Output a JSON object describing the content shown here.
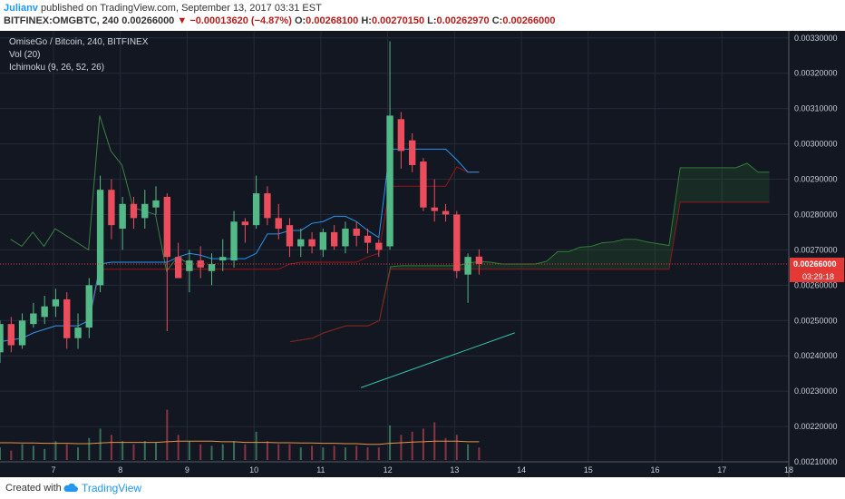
{
  "header": {
    "user": "Julianv",
    "published": " published on TradingView.com, September 13, 2017 03:31 EST",
    "symbol": "BITFINEX:OMGBTC, 240",
    "last": "0.00266000",
    "change": "−0.00013620 (−4.87%)",
    "ohlc_o_label": "O:",
    "ohlc_o": "0.00268100",
    "ohlc_h_label": "H:",
    "ohlc_h": "0.00270150",
    "ohlc_l_label": "L:",
    "ohlc_l": "0.00262970",
    "ohlc_c_label": "C:",
    "ohlc_c": "0.00266000"
  },
  "legend": {
    "title": "OmiseGo / Bitcoin, 240, BITFINEX",
    "vol": "Vol (20)",
    "ichimoku": "Ichimoku (9, 26, 52, 26)"
  },
  "footer": {
    "created": "Created with",
    "brand": "TradingView"
  },
  "colors": {
    "background": "#131722",
    "bull": "#53b987",
    "bear": "#eb4d5c",
    "price_line": "#e53935",
    "volume_ma": "#e59545",
    "trendline": "#2fc0a8",
    "kijun": "#991515",
    "tenkan": "#2196f3"
  },
  "chart_data": {
    "type": "candlestick",
    "symbol": "OMGBTC",
    "interval": "240",
    "ylim": [
      0.0021,
      0.00332
    ],
    "xlim": [
      6.2,
      18.0
    ],
    "y_ticks": [
      "0.00210000",
      "0.00220000",
      "0.00230000",
      "0.00240000",
      "0.00250000",
      "0.00260000",
      "0.00270000",
      "0.00280000",
      "0.00290000",
      "0.00300000",
      "0.00310000",
      "0.00320000",
      "0.00330000"
    ],
    "x_ticks": [
      "7",
      "8",
      "9",
      "10",
      "11",
      "12",
      "13",
      "14",
      "15",
      "16",
      "17",
      "18"
    ],
    "current_price_label": "0.00266000",
    "countdown_label": "03:29:18",
    "candles": [
      {
        "t": 6.2,
        "o": 0.00241,
        "h": 0.0025,
        "l": 0.00238,
        "c": 0.00249
      },
      {
        "t": 6.367,
        "o": 0.00249,
        "h": 0.00251,
        "l": 0.00241,
        "c": 0.00243
      },
      {
        "t": 6.533,
        "o": 0.00243,
        "h": 0.00252,
        "l": 0.00242,
        "c": 0.0025
      },
      {
        "t": 6.7,
        "o": 0.00249,
        "h": 0.00255,
        "l": 0.00248,
        "c": 0.00252
      },
      {
        "t": 6.867,
        "o": 0.00251,
        "h": 0.00257,
        "l": 0.00249,
        "c": 0.00254
      },
      {
        "t": 7.033,
        "o": 0.00254,
        "h": 0.00259,
        "l": 0.00251,
        "c": 0.00256
      },
      {
        "t": 7.2,
        "o": 0.00256,
        "h": 0.00258,
        "l": 0.00242,
        "c": 0.00245
      },
      {
        "t": 7.367,
        "o": 0.00245,
        "h": 0.00252,
        "l": 0.00242,
        "c": 0.00248
      },
      {
        "t": 7.533,
        "o": 0.00248,
        "h": 0.00262,
        "l": 0.00245,
        "c": 0.0026
      },
      {
        "t": 7.7,
        "o": 0.0026,
        "h": 0.00291,
        "l": 0.00258,
        "c": 0.00287
      },
      {
        "t": 7.867,
        "o": 0.00287,
        "h": 0.0029,
        "l": 0.00273,
        "c": 0.00277
      },
      {
        "t": 8.033,
        "o": 0.00276,
        "h": 0.00285,
        "l": 0.0027,
        "c": 0.00283
      },
      {
        "t": 8.2,
        "o": 0.00283,
        "h": 0.00285,
        "l": 0.00276,
        "c": 0.00279
      },
      {
        "t": 8.367,
        "o": 0.00279,
        "h": 0.00287,
        "l": 0.00276,
        "c": 0.00283
      },
      {
        "t": 8.533,
        "o": 0.00282,
        "h": 0.00288,
        "l": 0.0028,
        "c": 0.00284
      },
      {
        "t": 8.7,
        "o": 0.00285,
        "h": 0.00286,
        "l": 0.00247,
        "c": 0.00268
      },
      {
        "t": 8.867,
        "o": 0.00268,
        "h": 0.00272,
        "l": 0.00262,
        "c": 0.00262
      },
      {
        "t": 9.033,
        "o": 0.00264,
        "h": 0.0027,
        "l": 0.00258,
        "c": 0.00267
      },
      {
        "t": 9.2,
        "o": 0.00267,
        "h": 0.00271,
        "l": 0.00262,
        "c": 0.00265
      },
      {
        "t": 9.367,
        "o": 0.00264,
        "h": 0.00269,
        "l": 0.0026,
        "c": 0.00266
      },
      {
        "t": 9.533,
        "o": 0.00267,
        "h": 0.00273,
        "l": 0.00264,
        "c": 0.00268
      },
      {
        "t": 9.7,
        "o": 0.00267,
        "h": 0.00281,
        "l": 0.00265,
        "c": 0.00278
      },
      {
        "t": 9.867,
        "o": 0.00278,
        "h": 0.00279,
        "l": 0.00272,
        "c": 0.00277
      },
      {
        "t": 10.033,
        "o": 0.00277,
        "h": 0.00291,
        "l": 0.00276,
        "c": 0.00286
      },
      {
        "t": 10.2,
        "o": 0.00286,
        "h": 0.00288,
        "l": 0.00277,
        "c": 0.00279
      },
      {
        "t": 10.367,
        "o": 0.00279,
        "h": 0.00283,
        "l": 0.00273,
        "c": 0.00276
      },
      {
        "t": 10.533,
        "o": 0.00277,
        "h": 0.00279,
        "l": 0.00268,
        "c": 0.00271
      },
      {
        "t": 10.7,
        "o": 0.00271,
        "h": 0.00276,
        "l": 0.00268,
        "c": 0.00273
      },
      {
        "t": 10.867,
        "o": 0.00273,
        "h": 0.00275,
        "l": 0.00269,
        "c": 0.00271
      },
      {
        "t": 11.033,
        "o": 0.0027,
        "h": 0.00276,
        "l": 0.00268,
        "c": 0.00275
      },
      {
        "t": 11.2,
        "o": 0.00275,
        "h": 0.00277,
        "l": 0.0027,
        "c": 0.00271
      },
      {
        "t": 11.367,
        "o": 0.00271,
        "h": 0.00278,
        "l": 0.00269,
        "c": 0.00276
      },
      {
        "t": 11.533,
        "o": 0.00276,
        "h": 0.00278,
        "l": 0.00271,
        "c": 0.00274
      },
      {
        "t": 11.7,
        "o": 0.00274,
        "h": 0.00276,
        "l": 0.00269,
        "c": 0.00272
      },
      {
        "t": 11.867,
        "o": 0.00272,
        "h": 0.00273,
        "l": 0.00268,
        "c": 0.0027
      },
      {
        "t": 12.033,
        "o": 0.00271,
        "h": 0.00329,
        "l": 0.0027,
        "c": 0.00308
      },
      {
        "t": 12.2,
        "o": 0.00307,
        "h": 0.00309,
        "l": 0.00293,
        "c": 0.00298
      },
      {
        "t": 12.367,
        "o": 0.00301,
        "h": 0.00303,
        "l": 0.00292,
        "c": 0.00294
      },
      {
        "t": 12.533,
        "o": 0.00295,
        "h": 0.00296,
        "l": 0.00281,
        "c": 0.00282
      },
      {
        "t": 12.7,
        "o": 0.00282,
        "h": 0.0029,
        "l": 0.00278,
        "c": 0.00281
      },
      {
        "t": 12.867,
        "o": 0.00281,
        "h": 0.00283,
        "l": 0.00278,
        "c": 0.0028
      },
      {
        "t": 13.033,
        "o": 0.0028,
        "h": 0.00281,
        "l": 0.00262,
        "c": 0.00264
      },
      {
        "t": 13.2,
        "o": 0.00263,
        "h": 0.00269,
        "l": 0.00255,
        "c": 0.00268
      },
      {
        "t": 13.367,
        "o": 0.002681,
        "h": 0.0027015,
        "l": 0.0026297,
        "c": 0.00266
      }
    ],
    "volume": [
      0.4,
      0.3,
      0.5,
      0.45,
      0.35,
      0.6,
      0.5,
      0.4,
      0.7,
      1.0,
      0.8,
      0.6,
      0.5,
      0.6,
      0.55,
      1.6,
      0.8,
      0.6,
      0.5,
      0.45,
      0.5,
      0.6,
      0.5,
      0.9,
      0.6,
      0.5,
      0.5,
      0.4,
      0.45,
      0.4,
      0.45,
      0.4,
      0.45,
      0.4,
      0.4,
      1.1,
      0.8,
      0.9,
      1.0,
      1.2,
      0.7,
      0.8,
      0.5,
      0.4
    ],
    "volume_ma": [
      0.55,
      0.55,
      0.54,
      0.54,
      0.53,
      0.53,
      0.53,
      0.52,
      0.52,
      0.54,
      0.56,
      0.56,
      0.56,
      0.56,
      0.56,
      0.58,
      0.6,
      0.6,
      0.6,
      0.6,
      0.58,
      0.58,
      0.56,
      0.56,
      0.56,
      0.55,
      0.55,
      0.54,
      0.54,
      0.53,
      0.53,
      0.52,
      0.52,
      0.5,
      0.5,
      0.53,
      0.55,
      0.57,
      0.58,
      0.6,
      0.6,
      0.6,
      0.58,
      0.58
    ],
    "trendline": {
      "x": [
        11.6,
        13.9
      ],
      "y": [
        0.00231,
        0.002465
      ]
    }
  }
}
